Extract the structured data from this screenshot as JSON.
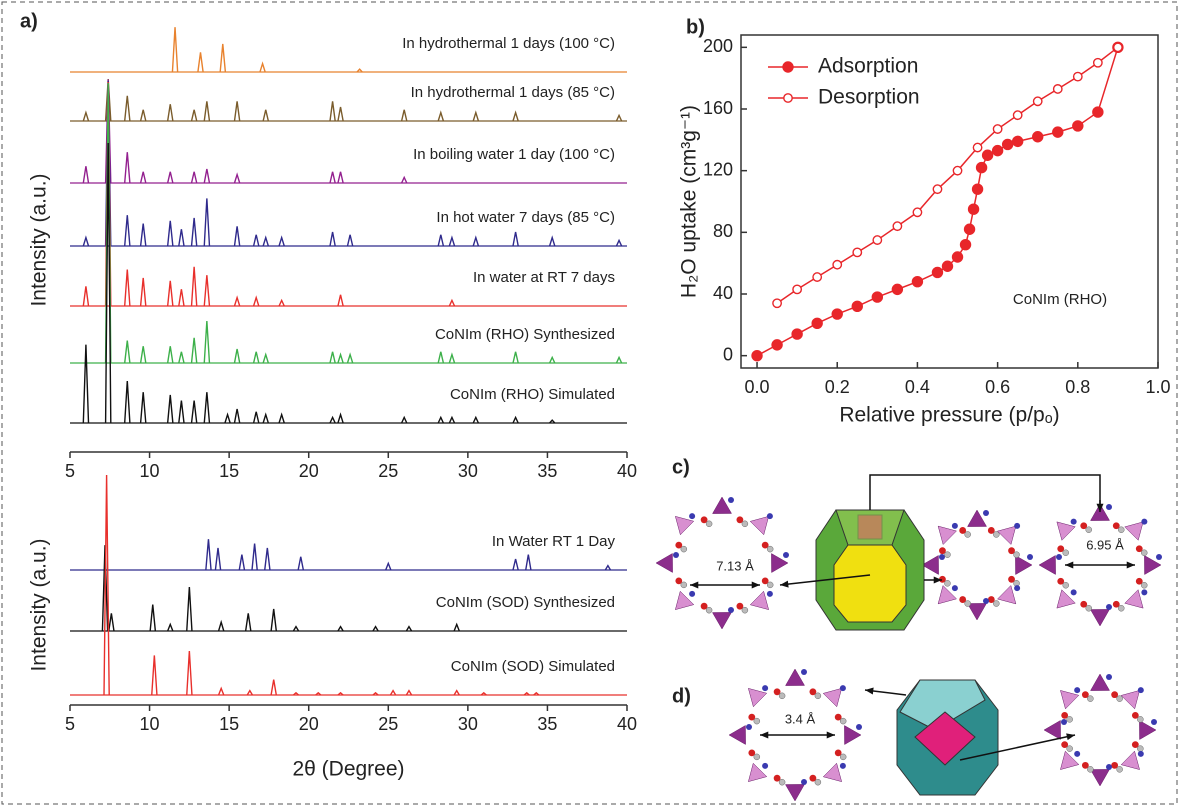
{
  "panel_labels": [
    "a)",
    "b)",
    "c)",
    "d)"
  ],
  "chart_data": [
    {
      "type": "spectrum",
      "y_label": "Intensity (a.u.)",
      "xlim": [
        5,
        40
      ],
      "xticks": [
        5,
        10,
        15,
        20,
        25,
        30,
        35,
        40
      ],
      "series": [
        {
          "name": "In hydrothermal 1 days (100 °C)",
          "color": "#e8822e",
          "x": [
            11.6,
            13.2,
            14.6,
            17.1,
            23.2
          ],
          "values": [
            16,
            7,
            10,
            3,
            1
          ]
        },
        {
          "name": "In hydrothermal 1 days (85 °C)",
          "color": "#7a5c2c",
          "x": [
            6.0,
            7.4,
            8.6,
            9.6,
            11.3,
            12.8,
            13.6,
            15.5,
            17.3,
            21.5,
            22.0,
            26.0,
            28.3,
            30.5,
            33.0,
            39.5
          ],
          "values": [
            3,
            15,
            9,
            4,
            6,
            4,
            7,
            7,
            4,
            7,
            5,
            4,
            3,
            3,
            3,
            2
          ]
        },
        {
          "name": "In boiling water 1 day (100 °C)",
          "color": "#93208f",
          "x": [
            6.0,
            7.4,
            8.6,
            9.6,
            11.3,
            12.8,
            13.6,
            15.5,
            21.5,
            22.0,
            26.0
          ],
          "values": [
            6,
            37,
            11,
            4,
            4,
            4,
            5,
            3,
            4,
            4,
            2
          ]
        },
        {
          "name": "In hot water 7 days (85 °C)",
          "color": "#2f2a8c",
          "x": [
            6.0,
            7.4,
            8.6,
            9.6,
            11.3,
            12.0,
            12.8,
            13.6,
            15.5,
            16.7,
            17.3,
            18.3,
            21.5,
            22.6,
            28.3,
            29.0,
            30.5,
            33.0,
            35.3,
            39.5
          ],
          "values": [
            3,
            59,
            11,
            8,
            9,
            6,
            10,
            17,
            7,
            4,
            3,
            3,
            5,
            4,
            4,
            3,
            3,
            5,
            3,
            2
          ]
        },
        {
          "name": "In water at RT 7 days",
          "color": "#e8302c",
          "x": [
            6.0,
            7.4,
            8.6,
            9.6,
            11.3,
            12.0,
            12.8,
            13.6,
            15.5,
            16.7,
            18.3,
            22.0,
            29.0
          ],
          "values": [
            7,
            80,
            13,
            10,
            9,
            6,
            14,
            11,
            3,
            3,
            2,
            4,
            2
          ]
        },
        {
          "name": "CoNIm (RHO) Synthesized",
          "color": "#3db04a",
          "x": [
            7.4,
            8.6,
            9.6,
            11.3,
            12.0,
            12.8,
            13.6,
            15.5,
            16.7,
            17.3,
            21.5,
            22.0,
            22.6,
            28.3,
            29.0,
            33.0,
            35.3,
            39.5
          ],
          "values": [
            100,
            8,
            6,
            6,
            4,
            9,
            15,
            5,
            4,
            3,
            4,
            3,
            3,
            4,
            3,
            4,
            2,
            2
          ]
        },
        {
          "name": "CoNIm (RHO) Simulated",
          "color": "#111111",
          "x": [
            6.0,
            7.4,
            8.6,
            9.6,
            11.3,
            12.0,
            12.8,
            13.6,
            14.9,
            15.5,
            16.7,
            17.3,
            18.3,
            21.5,
            22.0,
            26.0,
            28.3,
            29.0,
            30.5,
            33.0,
            35.3
          ],
          "values": [
            28,
            100,
            15,
            11,
            10,
            8,
            8,
            11,
            3,
            5,
            4,
            3,
            3,
            2,
            3,
            2,
            2,
            2,
            2,
            2,
            1
          ]
        }
      ]
    },
    {
      "type": "spectrum",
      "y_label": "Intensity (a.u.)",
      "x_label": "2θ (Degree)",
      "xlim": [
        5,
        40
      ],
      "xticks": [
        5,
        10,
        15,
        20,
        25,
        30,
        35,
        40
      ],
      "series": [
        {
          "name": "In Water RT 1 Day",
          "color": "#2f2a8c",
          "x": [
            13.7,
            14.3,
            15.8,
            16.6,
            17.4,
            19.5,
            25.0,
            33.0,
            33.8,
            38.8
          ],
          "values": [
            14,
            10,
            7,
            12,
            10,
            6,
            3,
            5,
            7,
            2
          ]
        },
        {
          "name": "CoNIm (SOD) Synthesized",
          "color": "#111111",
          "x": [
            7.2,
            7.6,
            10.2,
            11.3,
            12.5,
            14.5,
            16.2,
            17.8,
            19.2,
            22.0,
            24.2,
            26.3,
            29.3
          ],
          "values": [
            39,
            8,
            12,
            3,
            20,
            4,
            8,
            10,
            2,
            2,
            2,
            2,
            3
          ]
        },
        {
          "name": "CoNIm (SOD) Simulated",
          "color": "#e8302c",
          "x": [
            7.3,
            10.3,
            12.5,
            14.5,
            16.3,
            17.8,
            19.2,
            20.6,
            22.0,
            24.2,
            25.3,
            26.3,
            29.3,
            31.0,
            33.7,
            34.3
          ],
          "values": [
            100,
            18,
            20,
            3,
            2,
            7,
            1,
            1,
            1,
            1,
            2,
            2,
            2,
            1,
            1,
            1
          ]
        }
      ]
    },
    {
      "type": "line",
      "x_label": "Relative pressure (p/pₒ)",
      "y_label": "H₂O uptake  (cm³g⁻¹)",
      "annotation": "CoNIm (RHO)",
      "xlim": [
        -0.04,
        1.0
      ],
      "xticks": [
        {
          "value": 0,
          "label": "0.0"
        },
        0.2,
        0.4,
        0.6,
        0.8,
        {
          "value": 1,
          "label": "1.0"
        }
      ],
      "ylim": [
        -8,
        208
      ],
      "yticks": [
        0,
        40,
        80,
        120,
        160,
        200
      ],
      "series": [
        {
          "name": "Adsorption",
          "color": "#e8262a",
          "filled": true,
          "x": [
            0,
            0.05,
            0.1,
            0.15,
            0.2,
            0.25,
            0.3,
            0.35,
            0.4,
            0.45,
            0.475,
            0.5,
            0.52,
            0.53,
            0.54,
            0.55,
            0.56,
            0.575,
            0.6,
            0.625,
            0.65,
            0.7,
            0.75,
            0.8,
            0.85,
            0.9
          ],
          "values": [
            0,
            7,
            14,
            21,
            27,
            32,
            38,
            43,
            48,
            54,
            58,
            64,
            72,
            82,
            95,
            108,
            122,
            130,
            133,
            137,
            139,
            142,
            145,
            149,
            158,
            200
          ]
        },
        {
          "name": "Desorption",
          "color": "#e8262a",
          "filled": false,
          "x": [
            0.05,
            0.1,
            0.15,
            0.2,
            0.25,
            0.3,
            0.35,
            0.4,
            0.45,
            0.5,
            0.55,
            0.6,
            0.65,
            0.7,
            0.75,
            0.8,
            0.85,
            0.9
          ],
          "values": [
            34,
            43,
            51,
            59,
            67,
            75,
            84,
            93,
            108,
            120,
            135,
            147,
            156,
            165,
            173,
            181,
            190,
            200
          ]
        }
      ]
    }
  ],
  "diagrams": {
    "c": {
      "labels": [
        "7.13 Å",
        "6.95 Å"
      ]
    },
    "d": {
      "labels": [
        "3.4 Å"
      ]
    }
  }
}
